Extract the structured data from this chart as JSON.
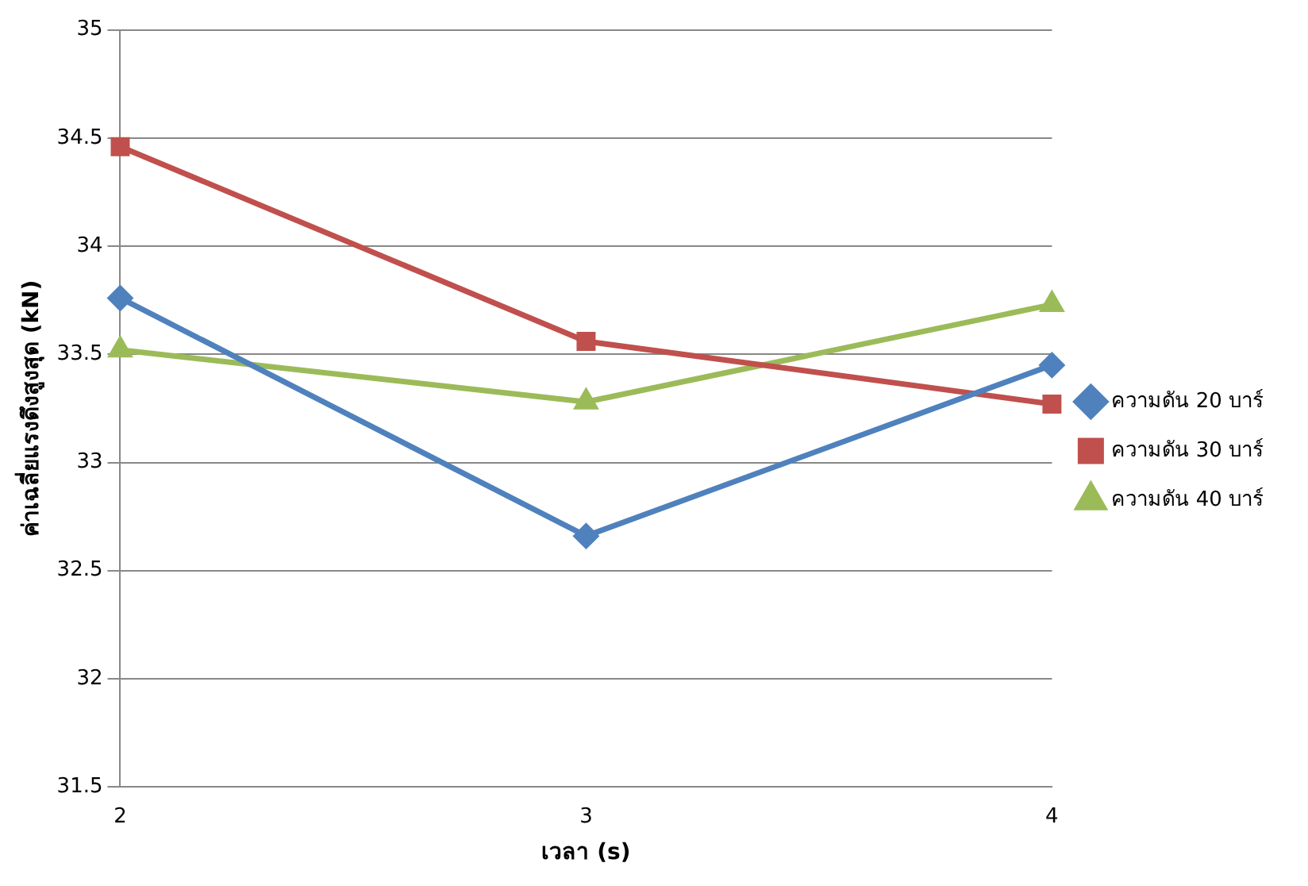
{
  "chart_data": {
    "type": "line",
    "xlabel": "เวลา (s)",
    "ylabel": "ค่าเฉลี่ยแรงดึงสูงสุด (kN)",
    "categories": [
      "2",
      "3",
      "4"
    ],
    "series": [
      {
        "name": "ความดัน 20 บาร์",
        "color": "#4f81bd",
        "marker": "diamond",
        "values": [
          33.76,
          32.66,
          33.45
        ]
      },
      {
        "name": "ความดัน 30 บาร์",
        "color": "#c0504d",
        "marker": "square",
        "values": [
          34.46,
          33.56,
          33.27
        ]
      },
      {
        "name": "ความดัน 40 บาร์",
        "color": "#9bbb59",
        "marker": "triangle",
        "values": [
          33.52,
          33.28,
          33.73
        ]
      }
    ],
    "ylim": [
      31.5,
      35
    ],
    "yticks": [
      31.5,
      32,
      32.5,
      33,
      33.5,
      34,
      34.5,
      35
    ],
    "grid": "y",
    "legend": "right"
  }
}
